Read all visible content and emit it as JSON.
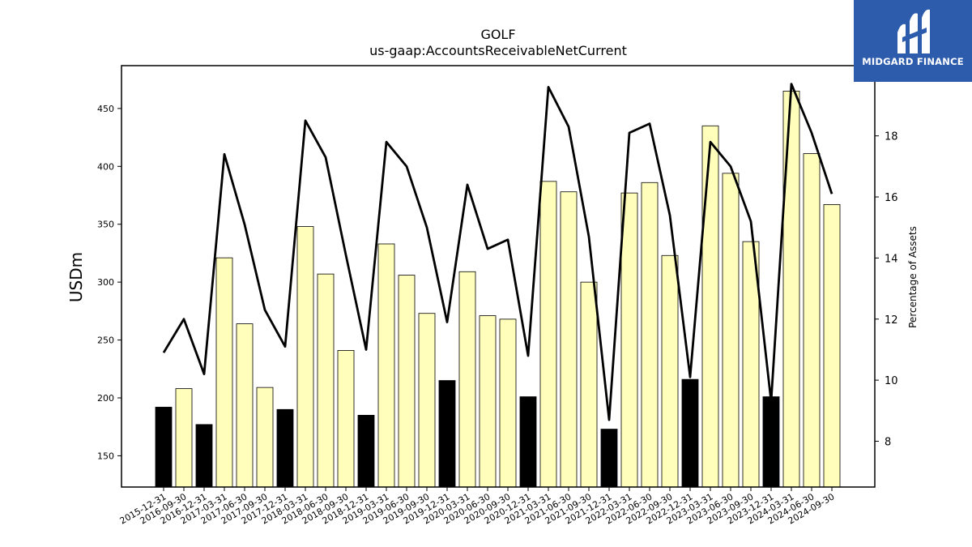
{
  "chart_data": {
    "type": "bar",
    "title": "GOLF",
    "subtitle": "us-gaap:AccountsReceivableNetCurrent",
    "ylabel": "USDm",
    "y2label": "Percentage of Assets",
    "ylim": [
      123,
      487
    ],
    "y2lim": [
      6.5,
      20.3
    ],
    "yticks": [
      150,
      200,
      250,
      300,
      350,
      400,
      450
    ],
    "y2ticks": [
      8,
      10,
      12,
      14,
      16,
      18
    ],
    "categories": [
      "2015-12-31",
      "2016-09-30",
      "2016-12-31",
      "2017-03-31",
      "2017-06-30",
      "2017-09-30",
      "2017-12-31",
      "2018-03-31",
      "2018-06-30",
      "2018-09-30",
      "2018-12-31",
      "2019-03-31",
      "2019-06-30",
      "2019-09-30",
      "2019-12-31",
      "2020-03-31",
      "2020-06-30",
      "2020-09-30",
      "2020-12-31",
      "2021-03-31",
      "2021-06-30",
      "2021-09-30",
      "2021-12-31",
      "2022-03-31",
      "2022-06-30",
      "2022-09-30",
      "2022-12-31",
      "2023-03-31",
      "2023-06-30",
      "2023-09-30",
      "2023-12-31",
      "2024-03-31",
      "2024-06-30",
      "2024-09-30"
    ],
    "series": [
      {
        "type": "bar",
        "values": [
          192,
          208,
          177,
          321,
          264,
          209,
          190,
          348,
          307,
          241,
          185,
          333,
          306,
          273,
          215,
          309,
          271,
          268,
          201,
          387,
          378,
          300,
          173,
          377,
          386,
          323,
          216,
          435,
          394,
          335,
          201,
          465,
          411,
          367
        ],
        "highlight": [
          true,
          false,
          true,
          false,
          false,
          false,
          true,
          false,
          false,
          false,
          true,
          false,
          false,
          false,
          true,
          false,
          false,
          false,
          true,
          false,
          false,
          false,
          true,
          false,
          false,
          false,
          true,
          false,
          false,
          false,
          true,
          false,
          false,
          false
        ]
      },
      {
        "type": "line",
        "axis": "right",
        "values": [
          10.9,
          12.0,
          10.2,
          17.4,
          15.1,
          12.3,
          11.1,
          18.5,
          17.3,
          14.1,
          11.0,
          17.8,
          17.0,
          15.0,
          11.9,
          16.4,
          14.3,
          14.6,
          10.8,
          19.6,
          18.3,
          14.7,
          8.7,
          18.1,
          18.4,
          15.4,
          10.1,
          17.8,
          17.0,
          15.2,
          9.3,
          19.7,
          18.1,
          16.1
        ]
      }
    ],
    "colors": {
      "bar_fill": "#ffffbb",
      "bar_highlight": "#000000",
      "bar_edge": "#000000",
      "line": "#000000"
    },
    "grid": false
  },
  "logo": {
    "text": "MIDGARD FINANCE",
    "background": "#2e5cad",
    "icon": "midgard-logo-icon"
  }
}
